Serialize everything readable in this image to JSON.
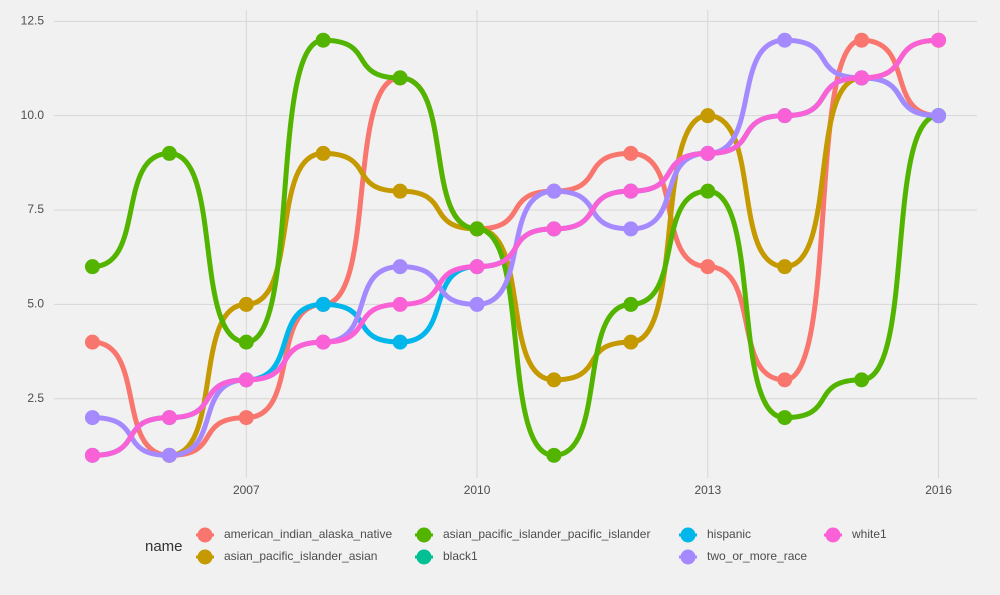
{
  "chart_data": {
    "type": "bump",
    "x": [
      2005,
      2006,
      2007,
      2008,
      2009,
      2010,
      2011,
      2012,
      2013,
      2014,
      2015,
      2016
    ],
    "xlim": [
      2004.5,
      2016.5
    ],
    "xticks": [
      2007,
      2010,
      2013,
      2016
    ],
    "ylim": [
      0.4,
      12.8
    ],
    "yticks": [
      2.5,
      {
        "value": 5,
        "label": "5.0"
      },
      7.5,
      {
        "value": 10,
        "label": "10.0"
      },
      12.5
    ],
    "grid": true,
    "legend_title": "name",
    "legend_position": "bottom",
    "series": [
      {
        "name": "american_indian_alaska_native",
        "color": "#F8766D",
        "values": [
          4,
          1,
          2,
          5,
          11,
          7,
          8,
          9,
          6,
          3,
          12,
          10
        ]
      },
      {
        "name": "asian_pacific_islander_asian",
        "color": "#C49A00",
        "values": [
          null,
          1,
          5,
          9,
          8,
          7,
          3,
          4,
          10,
          6,
          11,
          12
        ]
      },
      {
        "name": "asian_pacific_islander_pacific_islander",
        "color": "#53B400",
        "values": [
          6,
          9,
          4,
          12,
          11,
          7,
          1,
          5,
          8,
          2,
          3,
          10
        ]
      },
      {
        "name": "black1",
        "color": "#00C094",
        "values": [
          null,
          null,
          null,
          null,
          null,
          null,
          null,
          null,
          null,
          null,
          null,
          null
        ]
      },
      {
        "name": "hispanic",
        "color": "#00B6EB",
        "values": [
          1,
          2,
          3,
          5,
          4,
          6,
          7,
          8,
          9,
          10,
          11,
          10
        ]
      },
      {
        "name": "two_or_more_race",
        "color": "#A58AFF",
        "values": [
          2,
          1,
          3,
          4,
          6,
          5,
          8,
          7,
          9,
          12,
          11,
          10
        ]
      },
      {
        "name": "white1",
        "color": "#FB61D7",
        "values": [
          1,
          2,
          3,
          4,
          5,
          6,
          7,
          8,
          9,
          10,
          11,
          12
        ]
      }
    ]
  }
}
